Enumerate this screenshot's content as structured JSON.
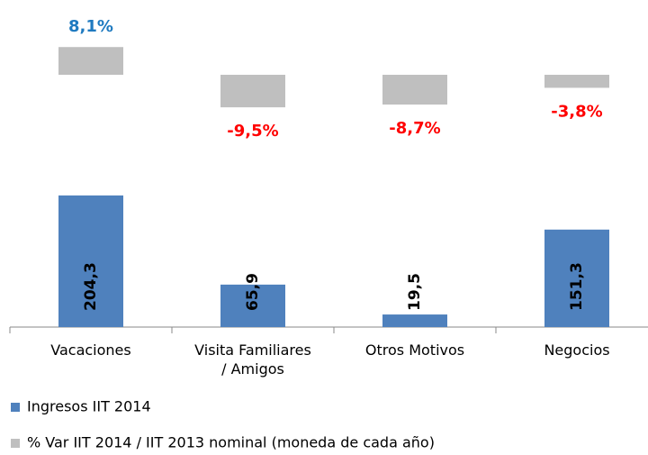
{
  "chart_data": {
    "type": "bar",
    "categories": [
      "Vacaciones",
      "Visita Familiares\n/ Amigos",
      "Otros Motivos",
      "Negocios"
    ],
    "series": [
      {
        "name": "Ingresos IIT 2014",
        "color": "#4f81bd",
        "values": [
          204.3,
          65.9,
          19.5,
          151.3
        ],
        "value_labels": [
          "204,3",
          "65,9",
          "19,5",
          "151,3"
        ]
      },
      {
        "name": "% Var IIT 2014 / IIT 2013 nominal (moneda de cada año)",
        "color": "#bfbfbf",
        "values": [
          8.1,
          -9.5,
          -8.7,
          -3.8
        ],
        "value_labels": [
          "8,1%",
          "-9,5%",
          "-8,7%",
          "-3,8%"
        ],
        "positive_label_color": "#1f7ac0",
        "negative_label_color": "#ff0000"
      }
    ]
  }
}
